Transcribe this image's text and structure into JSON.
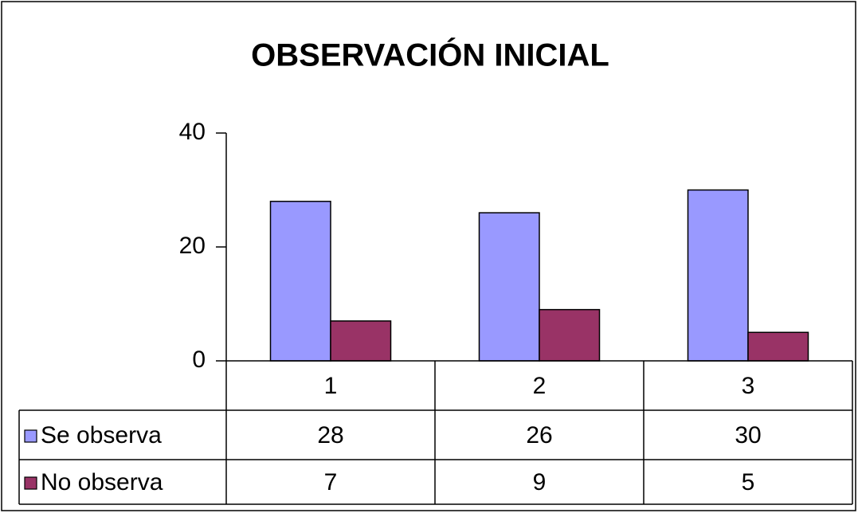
{
  "chart_data": {
    "type": "bar",
    "title": "OBSERVACIÓN INICIAL",
    "categories": [
      "1",
      "2",
      "3"
    ],
    "series": [
      {
        "name": "Se observa",
        "color": "#9999ff",
        "values": [
          28,
          26,
          30
        ]
      },
      {
        "name": "No observa",
        "color": "#993366",
        "values": [
          7,
          9,
          5
        ]
      }
    ],
    "ylim": [
      0,
      40
    ],
    "yticks": [
      0,
      20,
      40
    ],
    "grid": false,
    "data_table": true
  }
}
